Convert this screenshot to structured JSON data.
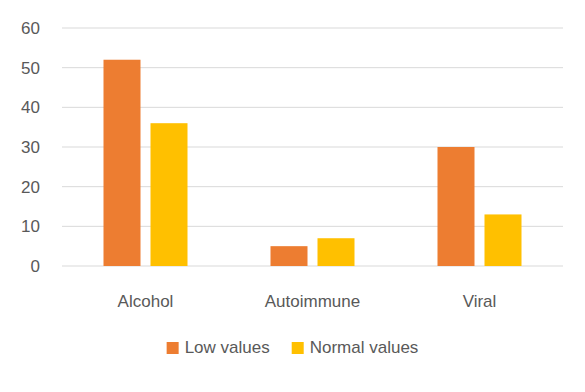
{
  "chart_data": {
    "type": "bar",
    "categories": [
      "Alcohol",
      "Autoimmune",
      "Viral"
    ],
    "series": [
      {
        "name": "Low values",
        "color": "#ed7d31",
        "values": [
          52,
          5,
          30
        ]
      },
      {
        "name": "Normal values",
        "color": "#ffc000",
        "values": [
          36,
          7,
          13
        ]
      }
    ],
    "ylim": [
      0,
      60
    ],
    "yticks": [
      0,
      10,
      20,
      30,
      40,
      50,
      60
    ],
    "grid": true,
    "legend": "bottom"
  }
}
